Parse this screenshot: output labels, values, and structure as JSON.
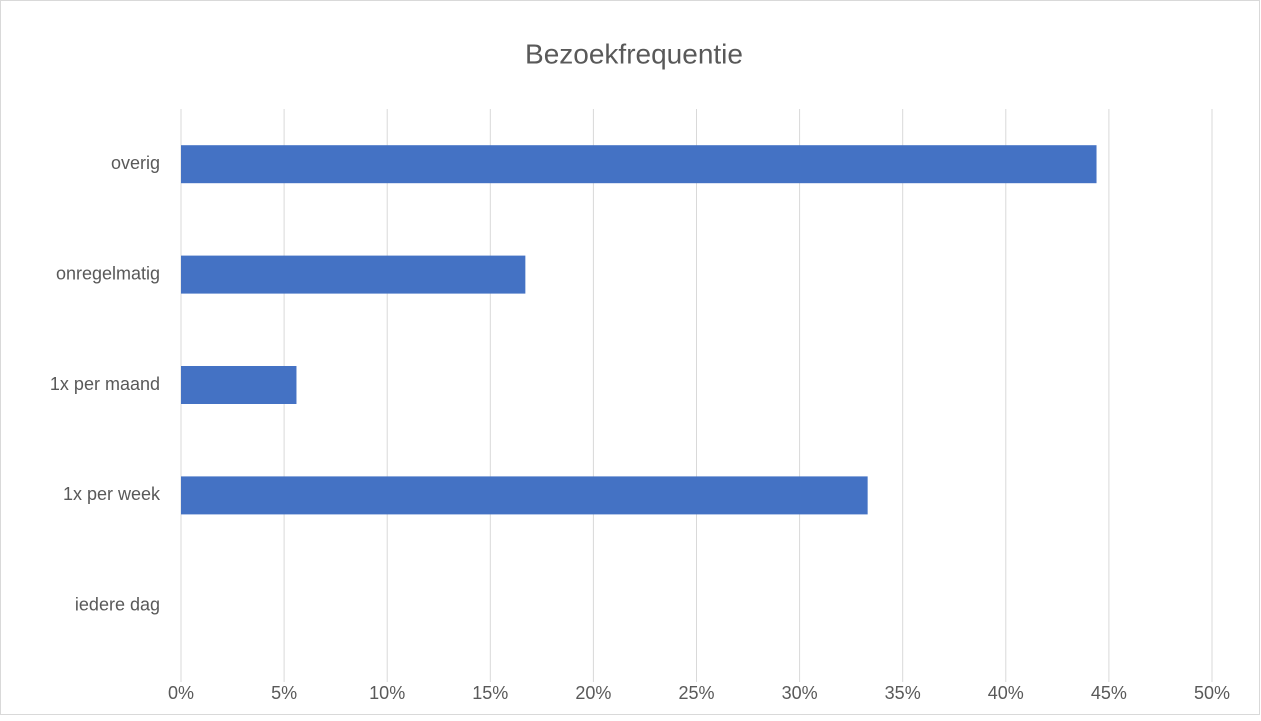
{
  "chart_data": {
    "type": "bar",
    "orientation": "horizontal",
    "title": "Bezoekfrequentie",
    "categories": [
      "overig",
      "onregelmatig",
      "1x per maand",
      "1x per week",
      "iedere dag"
    ],
    "values": [
      44.4,
      16.7,
      5.6,
      33.3,
      0
    ],
    "color": "#4472c4",
    "xlim": [
      0,
      50
    ],
    "xticks": [
      {
        "value": 0,
        "label": "0%"
      },
      {
        "value": 5,
        "label": "5%"
      },
      {
        "value": 10,
        "label": "10%"
      },
      {
        "value": 15,
        "label": "15%"
      },
      {
        "value": 20,
        "label": "20%"
      },
      {
        "value": 25,
        "label": "25%"
      },
      {
        "value": 30,
        "label": "30%"
      },
      {
        "value": 35,
        "label": "35%"
      },
      {
        "value": 40,
        "label": "40%"
      },
      {
        "value": 45,
        "label": "45%"
      },
      {
        "value": 50,
        "label": "50%"
      }
    ],
    "grid": true
  }
}
